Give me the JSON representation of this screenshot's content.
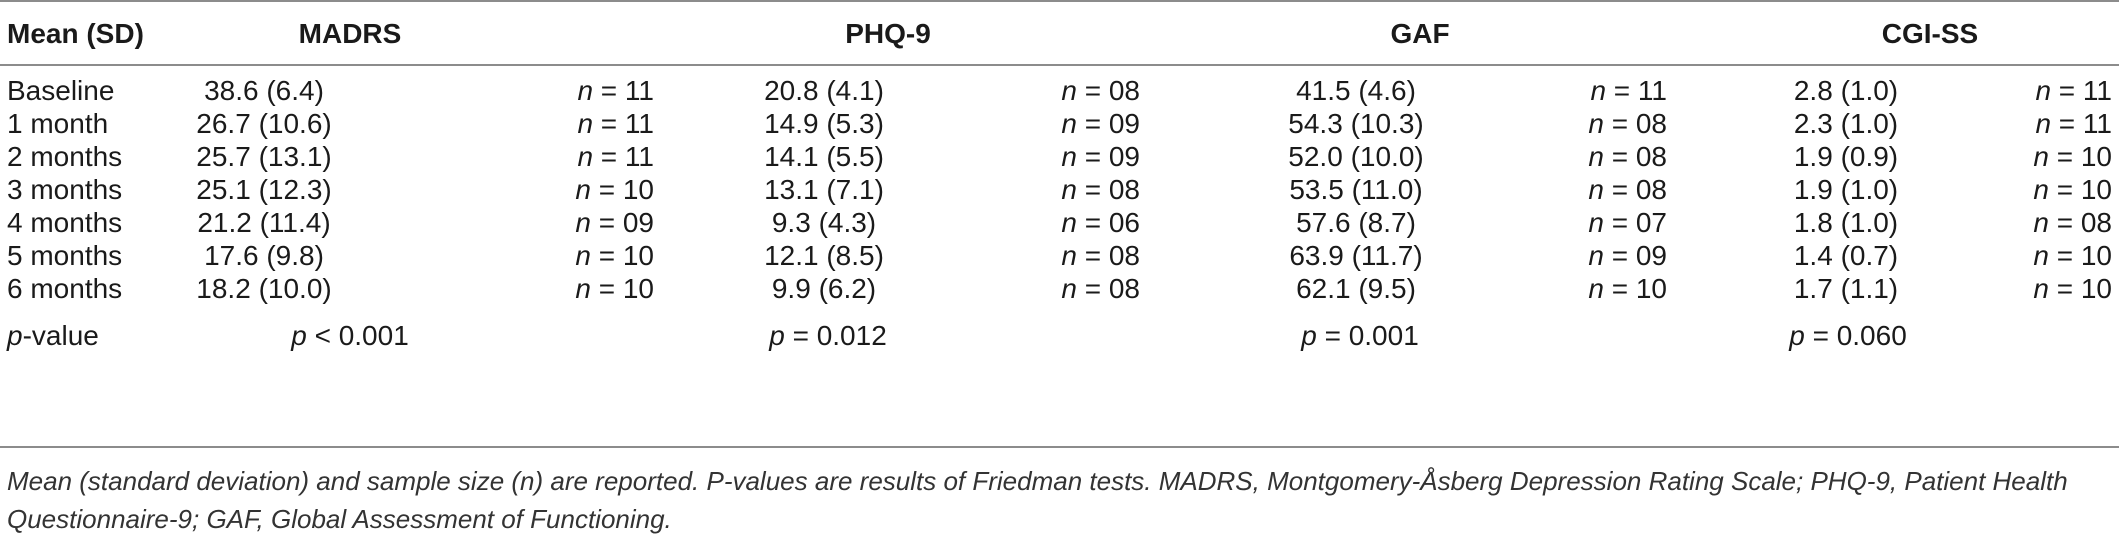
{
  "headers": {
    "row_label": "Mean (SD)",
    "madrs": "MADRS",
    "phq9": "PHQ-9",
    "gaf": "GAF",
    "cgiss": "CGI-SS"
  },
  "rows": [
    {
      "label": "Baseline",
      "madrs": "38.6 (6.4)",
      "madrs_n": "= 11",
      "phq9": "20.8 (4.1)",
      "phq9_n": "= 08",
      "gaf": "41.5 (4.6)",
      "gaf_n": "= 11",
      "cgiss": "2.8 (1.0)",
      "cgiss_n": "= 11"
    },
    {
      "label": "1 month",
      "madrs": "26.7 (10.6)",
      "madrs_n": "= 11",
      "phq9": "14.9 (5.3)",
      "phq9_n": "= 09",
      "gaf": "54.3 (10.3)",
      "gaf_n": "= 08",
      "cgiss": "2.3 (1.0)",
      "cgiss_n": "= 11"
    },
    {
      "label": "2 months",
      "madrs": "25.7 (13.1)",
      "madrs_n": "= 11",
      "phq9": "14.1 (5.5)",
      "phq9_n": "= 09",
      "gaf": "52.0 (10.0)",
      "gaf_n": "= 08",
      "cgiss": "1.9 (0.9)",
      "cgiss_n": "= 10"
    },
    {
      "label": "3 months",
      "madrs": "25.1 (12.3)",
      "madrs_n": "= 10",
      "phq9": "13.1 (7.1)",
      "phq9_n": "= 08",
      "gaf": "53.5 (11.0)",
      "gaf_n": "= 08",
      "cgiss": "1.9 (1.0)",
      "cgiss_n": "= 10"
    },
    {
      "label": "4 months",
      "madrs": "21.2 (11.4)",
      "madrs_n": "= 09",
      "phq9": "9.3 (4.3)",
      "phq9_n": "= 06",
      "gaf": "57.6 (8.7)",
      "gaf_n": "= 07",
      "cgiss": "1.8 (1.0)",
      "cgiss_n": "= 08"
    },
    {
      "label": "5 months",
      "madrs": "17.6 (9.8)",
      "madrs_n": "= 10",
      "phq9": "12.1 (8.5)",
      "phq9_n": "= 08",
      "gaf": "63.9 (11.7)",
      "gaf_n": "= 09",
      "cgiss": "1.4 (0.7)",
      "cgiss_n": "= 10"
    },
    {
      "label": "6 months",
      "madrs": "18.2 (10.0)",
      "madrs_n": "= 10",
      "phq9": "9.9 (6.2)",
      "phq9_n": "= 08",
      "gaf": "62.1 (9.5)",
      "gaf_n": "= 10",
      "cgiss": "1.7 (1.1)",
      "cgiss_n": "= 10"
    }
  ],
  "n_symbol": "n",
  "p_row": {
    "label_italic": "p",
    "label_rest": "-value",
    "p_symbol": "p",
    "madrs": "< 0.001",
    "phq9": "= 0.012",
    "gaf": "= 0.001",
    "cgiss": "= 0.060"
  },
  "footnote": "Mean (standard deviation) and sample size (n) are reported. P-values are results of Friedman tests. MADRS, Montgomery-Åsberg Depression Rating Scale; PHQ-9, Patient Health Questionnaire-9; GAF, Global Assessment of Functioning."
}
